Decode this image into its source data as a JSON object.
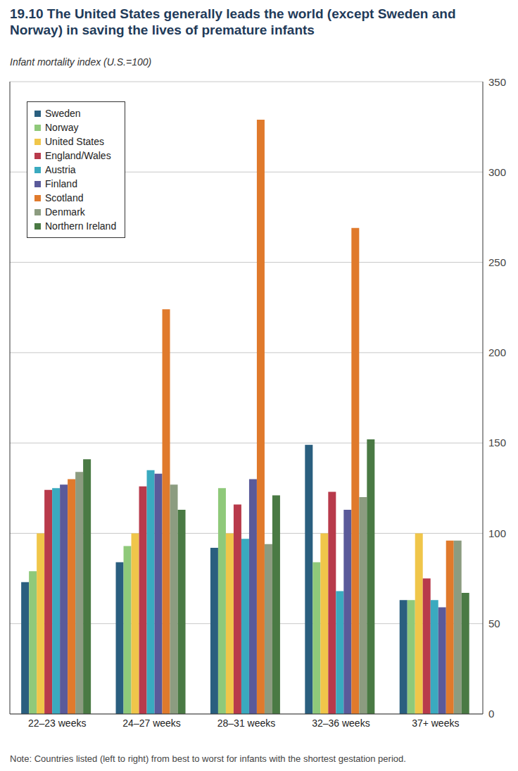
{
  "chart_data": {
    "type": "bar",
    "title": "19.10 The United States generally leads the world (except Sweden and Norway) in saving the lives of premature infants",
    "subtitle": "Infant mortality index (U.S.=100)",
    "note": "Note: Countries listed (left to right) from best to worst for infants with the shortest gestation period.",
    "categories": [
      "22–23 weeks",
      "24–27 weeks",
      "28–31 weeks",
      "32–36 weeks",
      "37+ weeks"
    ],
    "series": [
      {
        "name": "Sweden",
        "color": "#2a5f7f",
        "values": [
          73,
          84,
          92,
          149,
          63
        ]
      },
      {
        "name": "Norway",
        "color": "#8fc97a",
        "values": [
          79,
          93,
          125,
          84,
          63
        ]
      },
      {
        "name": "United States",
        "color": "#f0c64a",
        "values": [
          100,
          100,
          100,
          100,
          100
        ]
      },
      {
        "name": "England/Wales",
        "color": "#b83a4b",
        "values": [
          124,
          126,
          116,
          123,
          75
        ]
      },
      {
        "name": "Austria",
        "color": "#3aaabf",
        "values": [
          125,
          135,
          97,
          68,
          63
        ]
      },
      {
        "name": "Finland",
        "color": "#5a5a9a",
        "values": [
          127,
          133,
          130,
          113,
          59
        ]
      },
      {
        "name": "Scotland",
        "color": "#e07a2c",
        "values": [
          130,
          224,
          329,
          269,
          96
        ]
      },
      {
        "name": "Denmark",
        "color": "#8c9c80",
        "values": [
          134,
          127,
          94,
          120,
          96
        ]
      },
      {
        "name": "Northern Ireland",
        "color": "#4a7a44",
        "values": [
          141,
          113,
          121,
          152,
          67
        ]
      }
    ],
    "ylim": [
      0,
      350
    ],
    "yticks": [
      0,
      50,
      100,
      150,
      200,
      250,
      300,
      350
    ],
    "grid": true,
    "legend": "top-left"
  }
}
